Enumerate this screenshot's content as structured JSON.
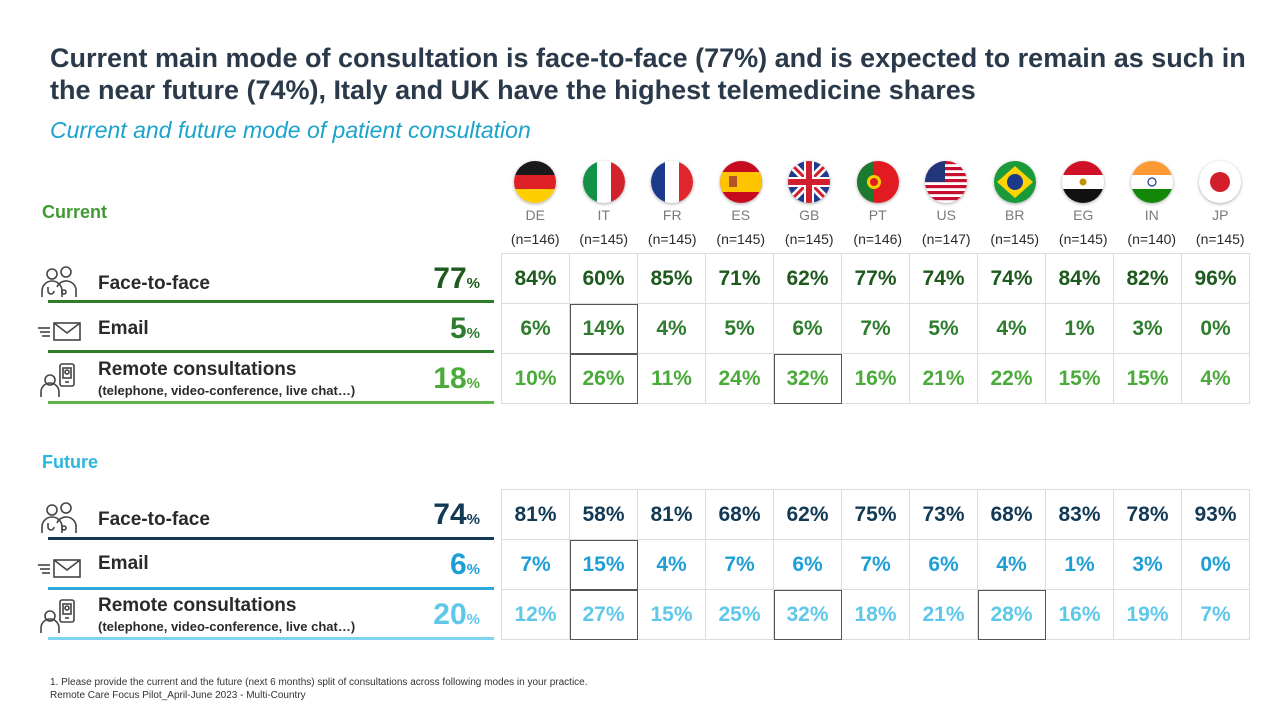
{
  "title": "Current main mode of consultation is face-to-face (77%) and is expected to remain as such in the near future (74%), Italy and UK have the highest telemedicine shares",
  "subtitle": "Current and future mode of patient consultation",
  "countries": [
    {
      "code": "DE",
      "n": "(n=146)",
      "flag": "germany-flag-icon"
    },
    {
      "code": "IT",
      "n": "(n=145)",
      "flag": "italy-flag-icon"
    },
    {
      "code": "FR",
      "n": "(n=145)",
      "flag": "france-flag-icon"
    },
    {
      "code": "ES",
      "n": "(n=145)",
      "flag": "spain-flag-icon"
    },
    {
      "code": "GB",
      "n": "(n=145)",
      "flag": "uk-flag-icon"
    },
    {
      "code": "PT",
      "n": "(n=146)",
      "flag": "portugal-flag-icon"
    },
    {
      "code": "US",
      "n": "(n=147)",
      "flag": "usa-flag-icon"
    },
    {
      "code": "BR",
      "n": "(n=145)",
      "flag": "brazil-flag-icon"
    },
    {
      "code": "EG",
      "n": "(n=145)",
      "flag": "egypt-flag-icon"
    },
    {
      "code": "IN",
      "n": "(n=140)",
      "flag": "india-flag-icon"
    },
    {
      "code": "JP",
      "n": "(n=145)",
      "flag": "japan-flag-icon"
    }
  ],
  "colors": {
    "current_section": "#3f9b2f",
    "current_face": "#1e5a1e",
    "current_email": "#2e7d2e",
    "current_remote": "#4aab3a",
    "current_line": "#2f7d2a",
    "current_remote_line": "#5cb548",
    "future_section": "#29b7e0",
    "future_face": "#123a55",
    "future_email": "#1d9fd6",
    "future_remote": "#5ec7ea",
    "future_line": "#123a55",
    "future_email_line": "#2ea8dd",
    "future_remote_line": "#7fd3ef"
  },
  "labels": {
    "current": "Current",
    "future": "Future",
    "face": "Face-to-face",
    "email": "Email",
    "remote": "Remote consultations",
    "remote_sub": "(telephone, video-conference, live chat…)",
    "pct_symbol": "%"
  },
  "chart_data": {
    "type": "table",
    "columns": [
      "DE",
      "IT",
      "FR",
      "ES",
      "GB",
      "PT",
      "US",
      "BR",
      "EG",
      "IN",
      "JP"
    ],
    "sample_sizes": [
      146,
      145,
      145,
      145,
      145,
      146,
      147,
      145,
      145,
      140,
      145
    ],
    "current": {
      "face": {
        "total": "77",
        "values": [
          "84%",
          "60%",
          "85%",
          "71%",
          "62%",
          "77%",
          "74%",
          "74%",
          "84%",
          "82%",
          "96%"
        ]
      },
      "email": {
        "total": "5",
        "values": [
          "6%",
          "14%",
          "4%",
          "5%",
          "6%",
          "7%",
          "5%",
          "4%",
          "1%",
          "3%",
          "0%"
        ]
      },
      "remote": {
        "total": "18",
        "values": [
          "10%",
          "26%",
          "11%",
          "24%",
          "32%",
          "16%",
          "21%",
          "22%",
          "15%",
          "15%",
          "4%"
        ]
      }
    },
    "future": {
      "face": {
        "total": "74",
        "values": [
          "81%",
          "58%",
          "81%",
          "68%",
          "62%",
          "75%",
          "73%",
          "68%",
          "83%",
          "78%",
          "93%"
        ]
      },
      "email": {
        "total": "6",
        "values": [
          "7%",
          "15%",
          "4%",
          "7%",
          "6%",
          "7%",
          "6%",
          "4%",
          "1%",
          "3%",
          "0%"
        ]
      },
      "remote": {
        "total": "20",
        "values": [
          "12%",
          "27%",
          "15%",
          "25%",
          "32%",
          "18%",
          "21%",
          "28%",
          "16%",
          "19%",
          "7%"
        ]
      }
    },
    "highlighted_cells": {
      "current_email": [
        "IT"
      ],
      "current_remote": [
        "IT",
        "GB"
      ],
      "future_email": [
        "IT"
      ],
      "future_remote": [
        "IT",
        "GB",
        "BR"
      ]
    }
  },
  "footnote1": "1. Please provide the current and the future (next 6 months) split of consultations across following modes in your practice.",
  "footnote2": "Remote Care Focus Pilot_April-June 2023 - Multi-Country"
}
